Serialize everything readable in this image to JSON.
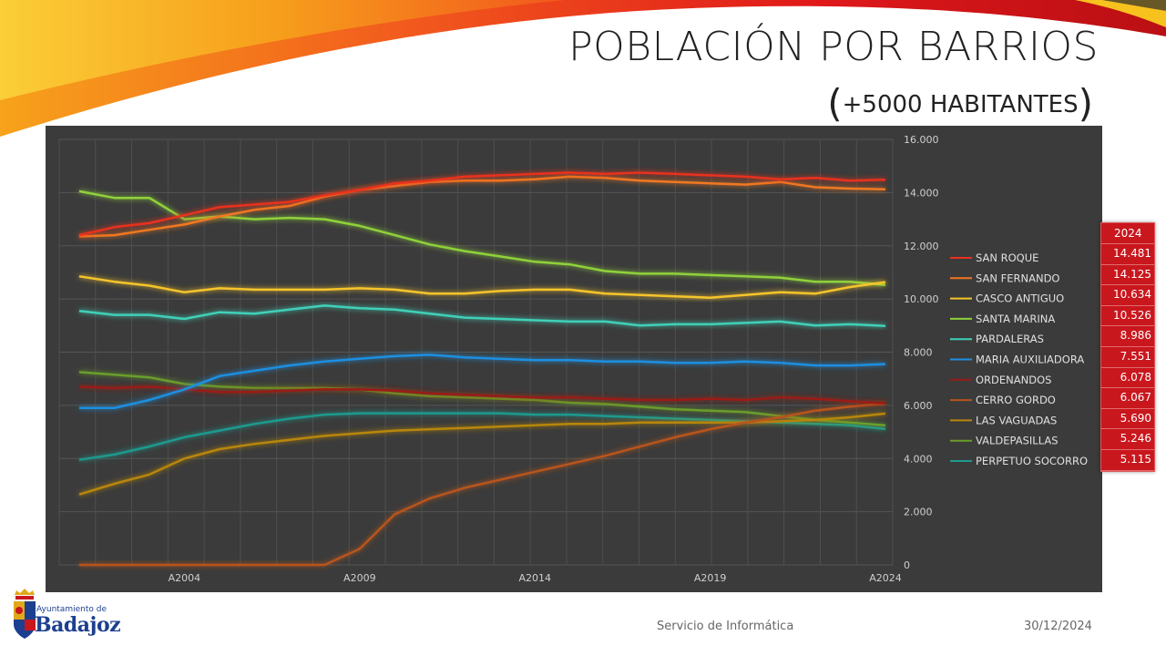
{
  "slide": {
    "title": "POBLACIÓN POR BARRIOS",
    "subtitle_open": "(",
    "subtitle_text": "+5000 HABITANTES",
    "subtitle_close": ")",
    "footer_center": "Servicio de Informática",
    "footer_date": "30/12/2024",
    "logo_small": "Ayuntamiento de",
    "logo_big": "Badajoz"
  },
  "colors": {
    "panel_bg": "#3b3b3b",
    "value_table_bg": "#c9171e"
  },
  "value_table": {
    "header": "2024",
    "values": [
      "14.481",
      "14.125",
      "10.634",
      "10.526",
      "8.986",
      "7.551",
      "6.078",
      "6.067",
      "5.690",
      "5.246",
      "5.115"
    ]
  },
  "chart_data": {
    "type": "line",
    "categories": [
      "A2001",
      "A2002",
      "A2003",
      "A2004",
      "A2005",
      "A2006",
      "A2007",
      "A2008",
      "A2009",
      "A2010",
      "A2011",
      "A2012",
      "A2013",
      "A2014",
      "A2015",
      "A2016",
      "A2017",
      "A2018",
      "A2019",
      "A2020",
      "A2021",
      "A2022",
      "A2023",
      "A2024"
    ],
    "x_tick_labels": [
      "A2004",
      "A2009",
      "A2014",
      "A2019",
      "A2024"
    ],
    "y_tick_labels": [
      "0",
      "2.000",
      "4.000",
      "6.000",
      "8.000",
      "10.000",
      "12.000",
      "14.000",
      "16.000"
    ],
    "ylim": [
      0,
      16000
    ],
    "grid": true,
    "legend_position": "right",
    "series": [
      {
        "name": "SAN ROQUE",
        "color": "#e8301e",
        "values": [
          12400,
          12700,
          12850,
          13150,
          13450,
          13550,
          13650,
          13900,
          14100,
          14350,
          14450,
          14600,
          14650,
          14700,
          14750,
          14700,
          14750,
          14700,
          14650,
          14600,
          14500,
          14550,
          14450,
          14481
        ]
      },
      {
        "name": "SAN FERNANDO",
        "color": "#f07820",
        "values": [
          12350,
          12400,
          12600,
          12800,
          13100,
          13350,
          13500,
          13850,
          14100,
          14250,
          14400,
          14450,
          14450,
          14500,
          14600,
          14550,
          14450,
          14400,
          14350,
          14300,
          14400,
          14200,
          14150,
          14125
        ]
      },
      {
        "name": "CASCO ANTIGUO",
        "color": "#f5c42a",
        "values": [
          10850,
          10650,
          10500,
          10250,
          10400,
          10350,
          10350,
          10350,
          10400,
          10350,
          10200,
          10200,
          10300,
          10350,
          10350,
          10200,
          10150,
          10100,
          10050,
          10150,
          10250,
          10200,
          10450,
          10634
        ]
      },
      {
        "name": "SANTA MARINA",
        "color": "#8fd13a",
        "values": [
          14050,
          13800,
          13800,
          13000,
          13100,
          13000,
          13050,
          13000,
          12750,
          12400,
          12050,
          11800,
          11600,
          11400,
          11300,
          11050,
          10950,
          10950,
          10900,
          10850,
          10800,
          10650,
          10650,
          10526
        ]
      },
      {
        "name": "PARDALERAS",
        "color": "#3fd0b8",
        "values": [
          9550,
          9400,
          9400,
          9250,
          9500,
          9450,
          9600,
          9750,
          9650,
          9600,
          9450,
          9300,
          9250,
          9200,
          9150,
          9150,
          9000,
          9050,
          9050,
          9100,
          9150,
          9000,
          9050,
          8986
        ]
      },
      {
        "name": "MARIA AUXILIADORA",
        "color": "#1e8fe0",
        "values": [
          5900,
          5900,
          6200,
          6600,
          7100,
          7300,
          7500,
          7650,
          7750,
          7850,
          7900,
          7800,
          7750,
          7700,
          7700,
          7650,
          7650,
          7600,
          7600,
          7650,
          7600,
          7500,
          7500,
          7551
        ]
      },
      {
        "name": "ORDENANDOS",
        "color": "#9a1b14",
        "values": [
          6700,
          6650,
          6700,
          6600,
          6500,
          6500,
          6550,
          6600,
          6600,
          6550,
          6450,
          6400,
          6350,
          6300,
          6300,
          6250,
          6200,
          6200,
          6250,
          6200,
          6300,
          6250,
          6150,
          6078
        ]
      },
      {
        "name": "CERRO GORDO",
        "color": "#b8541c",
        "values": [
          0,
          0,
          0,
          0,
          0,
          0,
          0,
          0,
          600,
          1900,
          2500,
          2900,
          3200,
          3500,
          3800,
          4100,
          4450,
          4800,
          5100,
          5350,
          5550,
          5800,
          5950,
          6067
        ]
      },
      {
        "name": "LAS VAGUADAS",
        "color": "#b8860b",
        "values": [
          2650,
          3050,
          3400,
          4000,
          4350,
          4550,
          4700,
          4850,
          4950,
          5050,
          5100,
          5150,
          5200,
          5250,
          5300,
          5300,
          5350,
          5350,
          5350,
          5350,
          5400,
          5450,
          5550,
          5690
        ]
      },
      {
        "name": "VALDEPASILLAS",
        "color": "#6a9e2a",
        "values": [
          7250,
          7150,
          7050,
          6800,
          6700,
          6650,
          6650,
          6650,
          6600,
          6450,
          6350,
          6300,
          6250,
          6200,
          6100,
          6050,
          5950,
          5850,
          5800,
          5750,
          5600,
          5450,
          5350,
          5246
        ]
      },
      {
        "name": "PERPETUO SOCORRO",
        "color": "#1f9a8e",
        "values": [
          3950,
          4150,
          4450,
          4800,
          5050,
          5300,
          5500,
          5650,
          5700,
          5700,
          5700,
          5700,
          5700,
          5650,
          5650,
          5600,
          5550,
          5500,
          5450,
          5400,
          5350,
          5300,
          5250,
          5115
        ]
      }
    ]
  }
}
